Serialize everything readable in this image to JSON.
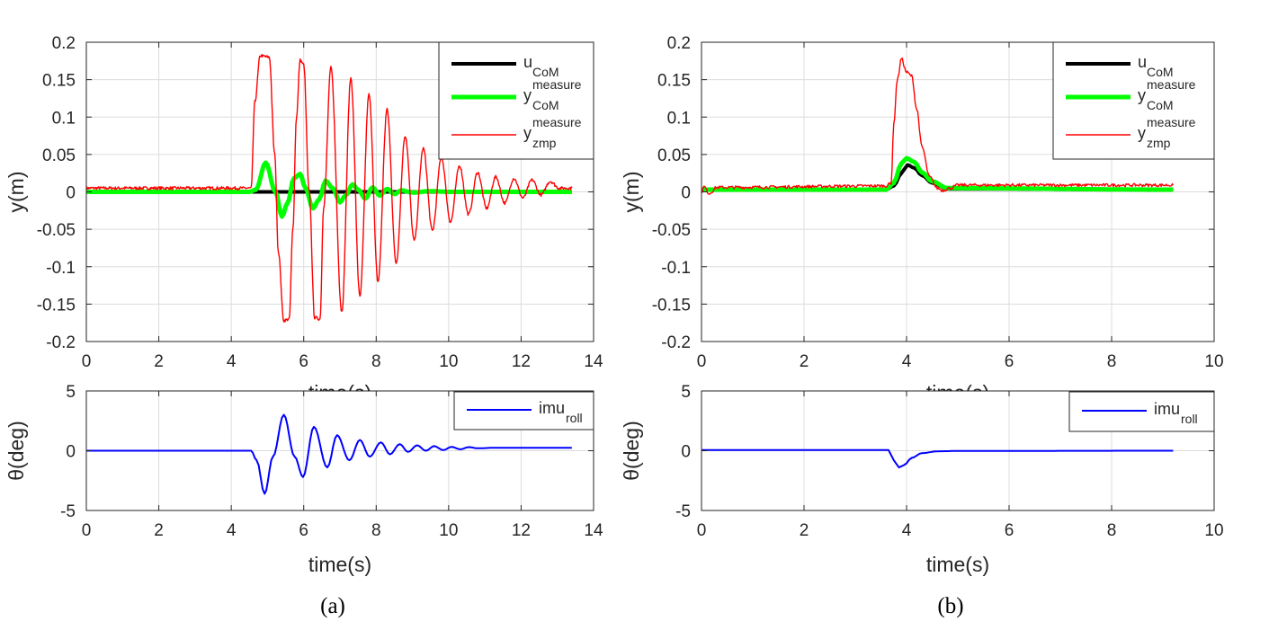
{
  "chart_data": [
    {
      "id": "a-top",
      "type": "line",
      "xlim": [
        0,
        14
      ],
      "ylim": [
        -0.2,
        0.2
      ],
      "xticks": [
        0,
        2,
        4,
        6,
        8,
        10,
        12,
        14
      ],
      "yticks": [
        -0.2,
        -0.15,
        -0.1,
        -0.05,
        0,
        0.05,
        0.1,
        0.15,
        0.2
      ],
      "ytick_labels": [
        "-0.2",
        "-0.15",
        "-0.1",
        "-0.05",
        "0",
        "0.05",
        "0.1",
        "0.15",
        "0.2"
      ],
      "ylabel": "y(m)",
      "xlabel_partial": "time(s)",
      "grid": true,
      "legend_position": "top-right",
      "series": [
        {
          "name": "u_CoM",
          "label_main": "u",
          "label_sub": "CoM",
          "label_sup": "",
          "color": "#000000",
          "x": [
            0,
            13.4
          ],
          "y": [
            0,
            0
          ]
        },
        {
          "name": "y_CoM^measure",
          "label_main": "y",
          "label_sub": "CoM",
          "label_sup": "measure",
          "color": "#00ff00",
          "x": [
            0,
            4.5,
            4.68,
            4.95,
            5.22,
            5.4,
            5.55,
            5.73,
            5.9,
            6.05,
            6.25,
            6.43,
            6.6,
            6.8,
            7.0,
            7.15,
            7.35,
            7.5,
            7.7,
            7.9,
            8.1,
            8.3,
            8.5,
            8.7,
            9.0,
            9.5,
            10.0,
            13.4
          ],
          "y": [
            0,
            0,
            0.003,
            0.039,
            0.0,
            -0.033,
            -0.015,
            0.018,
            0.024,
            0.005,
            -0.022,
            -0.01,
            0.015,
            0.005,
            -0.014,
            -0.005,
            0.01,
            0.003,
            -0.009,
            0.006,
            -0.005,
            0.004,
            -0.003,
            0.002,
            -0.001,
            0.001,
            0,
            0
          ]
        },
        {
          "name": "y_zmp^measure",
          "label_main": "y",
          "label_sub": "zmp",
          "label_sup": "measure",
          "color": "#ff0000",
          "x": [
            0,
            4.55,
            4.65,
            4.8,
            5.05,
            5.2,
            5.3,
            5.45,
            5.6,
            5.7,
            5.8,
            5.9,
            6.0,
            6.15,
            6.3,
            6.45,
            6.55,
            6.75,
            7.05,
            7.3,
            7.55,
            7.8,
            8.05,
            8.3,
            8.55,
            8.8,
            9.05,
            9.3,
            9.55,
            9.8,
            10.05,
            10.3,
            10.55,
            10.8,
            11.05,
            11.3,
            11.55,
            11.8,
            12.05,
            12.3,
            12.55,
            12.8,
            13.05,
            13.4
          ],
          "y": [
            0.005,
            0.005,
            0.12,
            0.182,
            0.18,
            0.05,
            -0.08,
            -0.172,
            -0.17,
            -0.05,
            0.1,
            0.176,
            0.17,
            0.0,
            -0.168,
            -0.17,
            -0.02,
            0.166,
            -0.16,
            0.152,
            -0.14,
            0.13,
            -0.12,
            0.11,
            -0.095,
            0.075,
            -0.065,
            0.058,
            -0.052,
            0.046,
            -0.04,
            0.035,
            -0.03,
            0.026,
            -0.022,
            0.02,
            -0.015,
            0.018,
            -0.008,
            0.016,
            -0.004,
            0.014,
            0.005,
            0.005
          ]
        }
      ]
    },
    {
      "id": "a-bottom",
      "type": "line",
      "xlim": [
        0,
        14
      ],
      "ylim": [
        -5,
        5
      ],
      "xticks": [
        0,
        2,
        4,
        6,
        8,
        10,
        12,
        14
      ],
      "yticks": [
        -5,
        0,
        5
      ],
      "ytick_labels": [
        "-5",
        "0",
        "5"
      ],
      "ylabel": "θ(deg)",
      "xlabel": "time(s)",
      "grid": true,
      "legend_position": "top-right",
      "series": [
        {
          "name": "imu_roll",
          "label_main": "imu",
          "label_sub": "roll",
          "label_sup": "",
          "color": "#0000ff",
          "x": [
            0,
            4.55,
            4.7,
            4.92,
            5.15,
            5.45,
            5.75,
            5.98,
            6.28,
            6.65,
            6.92,
            7.26,
            7.55,
            7.82,
            8.13,
            8.38,
            8.65,
            8.88,
            9.13,
            9.37,
            9.6,
            9.85,
            10.08,
            10.32,
            10.56,
            10.8,
            11.3,
            13.4
          ],
          "y": [
            0,
            0,
            -0.8,
            -3.6,
            -0.5,
            3.0,
            -0.5,
            -2.2,
            2.0,
            -1.4,
            1.3,
            -0.8,
            0.9,
            -0.5,
            0.7,
            -0.3,
            0.55,
            -0.1,
            0.45,
            0.0,
            0.38,
            0.05,
            0.32,
            0.12,
            0.3,
            0.2,
            0.25,
            0.25
          ]
        }
      ]
    },
    {
      "id": "b-top",
      "type": "line",
      "xlim": [
        0,
        10
      ],
      "ylim": [
        -0.2,
        0.2
      ],
      "xticks": [
        0,
        2,
        4,
        6,
        8,
        10
      ],
      "yticks": [
        -0.2,
        -0.15,
        -0.1,
        -0.05,
        0,
        0.05,
        0.1,
        0.15,
        0.2
      ],
      "ytick_labels": [
        "-0.2",
        "-0.15",
        "-0.1",
        "-0.05",
        "0",
        "0.05",
        "0.1",
        "0.15",
        "0.2"
      ],
      "ylabel": "y(m)",
      "xlabel_partial": "time(s)",
      "grid": true,
      "legend_position": "top-right",
      "series": [
        {
          "name": "u_CoM",
          "label_main": "u",
          "label_sub": "CoM",
          "label_sup": "",
          "color": "#000000",
          "x": [
            0,
            3.6,
            3.75,
            3.9,
            4.02,
            4.15,
            4.3,
            4.5,
            4.8,
            9.2
          ],
          "y": [
            0.003,
            0.003,
            0.008,
            0.025,
            0.036,
            0.032,
            0.022,
            0.012,
            0.004,
            0.003
          ]
        },
        {
          "name": "y_CoM^measure",
          "label_main": "y",
          "label_sub": "CoM",
          "label_sup": "measure",
          "color": "#00ff00",
          "x": [
            0,
            3.6,
            3.75,
            3.9,
            4.0,
            4.15,
            4.3,
            4.5,
            4.8,
            9.2
          ],
          "y": [
            0.003,
            0.003,
            0.012,
            0.038,
            0.045,
            0.04,
            0.026,
            0.014,
            0.005,
            0.003
          ]
        },
        {
          "name": "y_zmp^measure",
          "label_main": "y",
          "label_sub": "zmp",
          "label_sup": "measure",
          "color": "#ff0000",
          "x": [
            0,
            0.05,
            0.15,
            0.3,
            3.6,
            3.7,
            3.75,
            3.82,
            3.9,
            4.0,
            4.1,
            4.2,
            4.3,
            4.45,
            4.6,
            4.7,
            4.85,
            5.0,
            9.2
          ],
          "y": [
            0,
            0.007,
            -0.002,
            0.006,
            0.008,
            0.012,
            0.09,
            0.15,
            0.178,
            0.16,
            0.155,
            0.11,
            0.06,
            0.02,
            0.005,
            0.002,
            0.005,
            0.009,
            0.009
          ]
        }
      ]
    },
    {
      "id": "b-bottom",
      "type": "line",
      "xlim": [
        0,
        10
      ],
      "ylim": [
        -5,
        5
      ],
      "xticks": [
        0,
        2,
        4,
        6,
        8,
        10
      ],
      "yticks": [
        -5,
        0,
        5
      ],
      "ytick_labels": [
        "-5",
        "0",
        "5"
      ],
      "ylabel": "θ(deg)",
      "xlabel": "time(s)",
      "grid": true,
      "legend_position": "top-right",
      "series": [
        {
          "name": "imu_roll",
          "label_main": "imu",
          "label_sub": "roll",
          "label_sup": "",
          "color": "#0000ff",
          "x": [
            0,
            3.65,
            3.75,
            3.85,
            3.95,
            4.1,
            4.3,
            4.6,
            5.0,
            9.2
          ],
          "y": [
            0.05,
            0.05,
            -0.8,
            -1.4,
            -1.2,
            -0.6,
            -0.2,
            -0.05,
            -0.02,
            0.0
          ]
        }
      ]
    }
  ],
  "captions": {
    "a": "(a)",
    "b": "(b)"
  }
}
